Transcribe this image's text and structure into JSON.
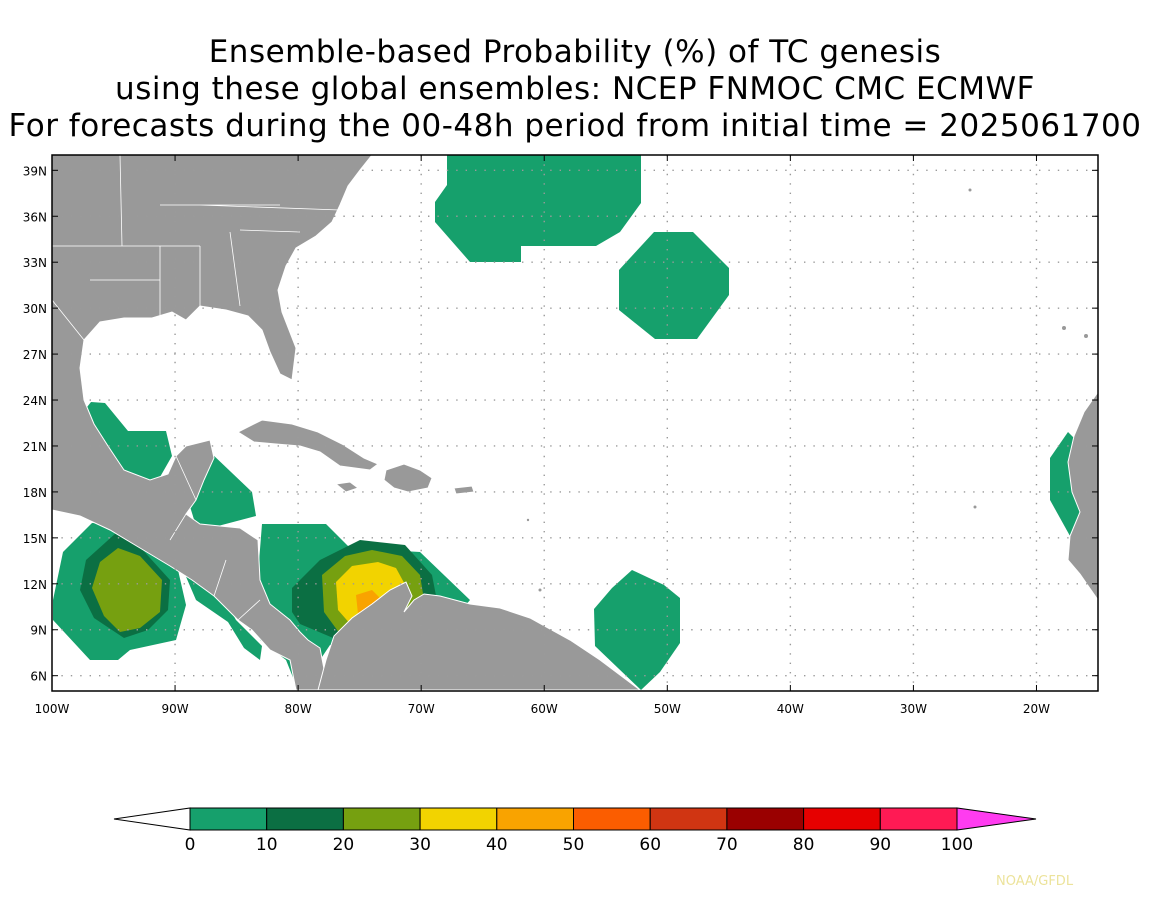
{
  "title_lines": [
    "Ensemble-based Probability (%) of TC genesis",
    "using these global ensembles:   NCEP FNMOC CMC ECMWF",
    "For forecasts during the 00-48h period from initial time = 2025061700"
  ],
  "lat_labels": [
    "39N",
    "36N",
    "33N",
    "30N",
    "27N",
    "24N",
    "21N",
    "18N",
    "15N",
    "12N",
    "9N",
    "6N"
  ],
  "lon_labels": [
    "100W",
    "90W",
    "80W",
    "70W",
    "60W",
    "50W",
    "40W",
    "30W",
    "20W"
  ],
  "colorbar": {
    "labels": [
      "0",
      "10",
      "20",
      "30",
      "40",
      "50",
      "60",
      "70",
      "80",
      "90",
      "100"
    ],
    "colors": [
      "#16a06c",
      "#0b6f43",
      "#76a010",
      "#f2d300",
      "#f9a300",
      "#fb5d00",
      "#d03512",
      "#9a0000",
      "#e60000",
      "#ff1a54"
    ],
    "under_color": "#ffffff",
    "over_color": "#ff3cf0"
  },
  "colors": {
    "land": "#999999",
    "border": "#ffffff",
    "grid": "#9a9a9a"
  },
  "credit": "NOAA/GFDL"
}
